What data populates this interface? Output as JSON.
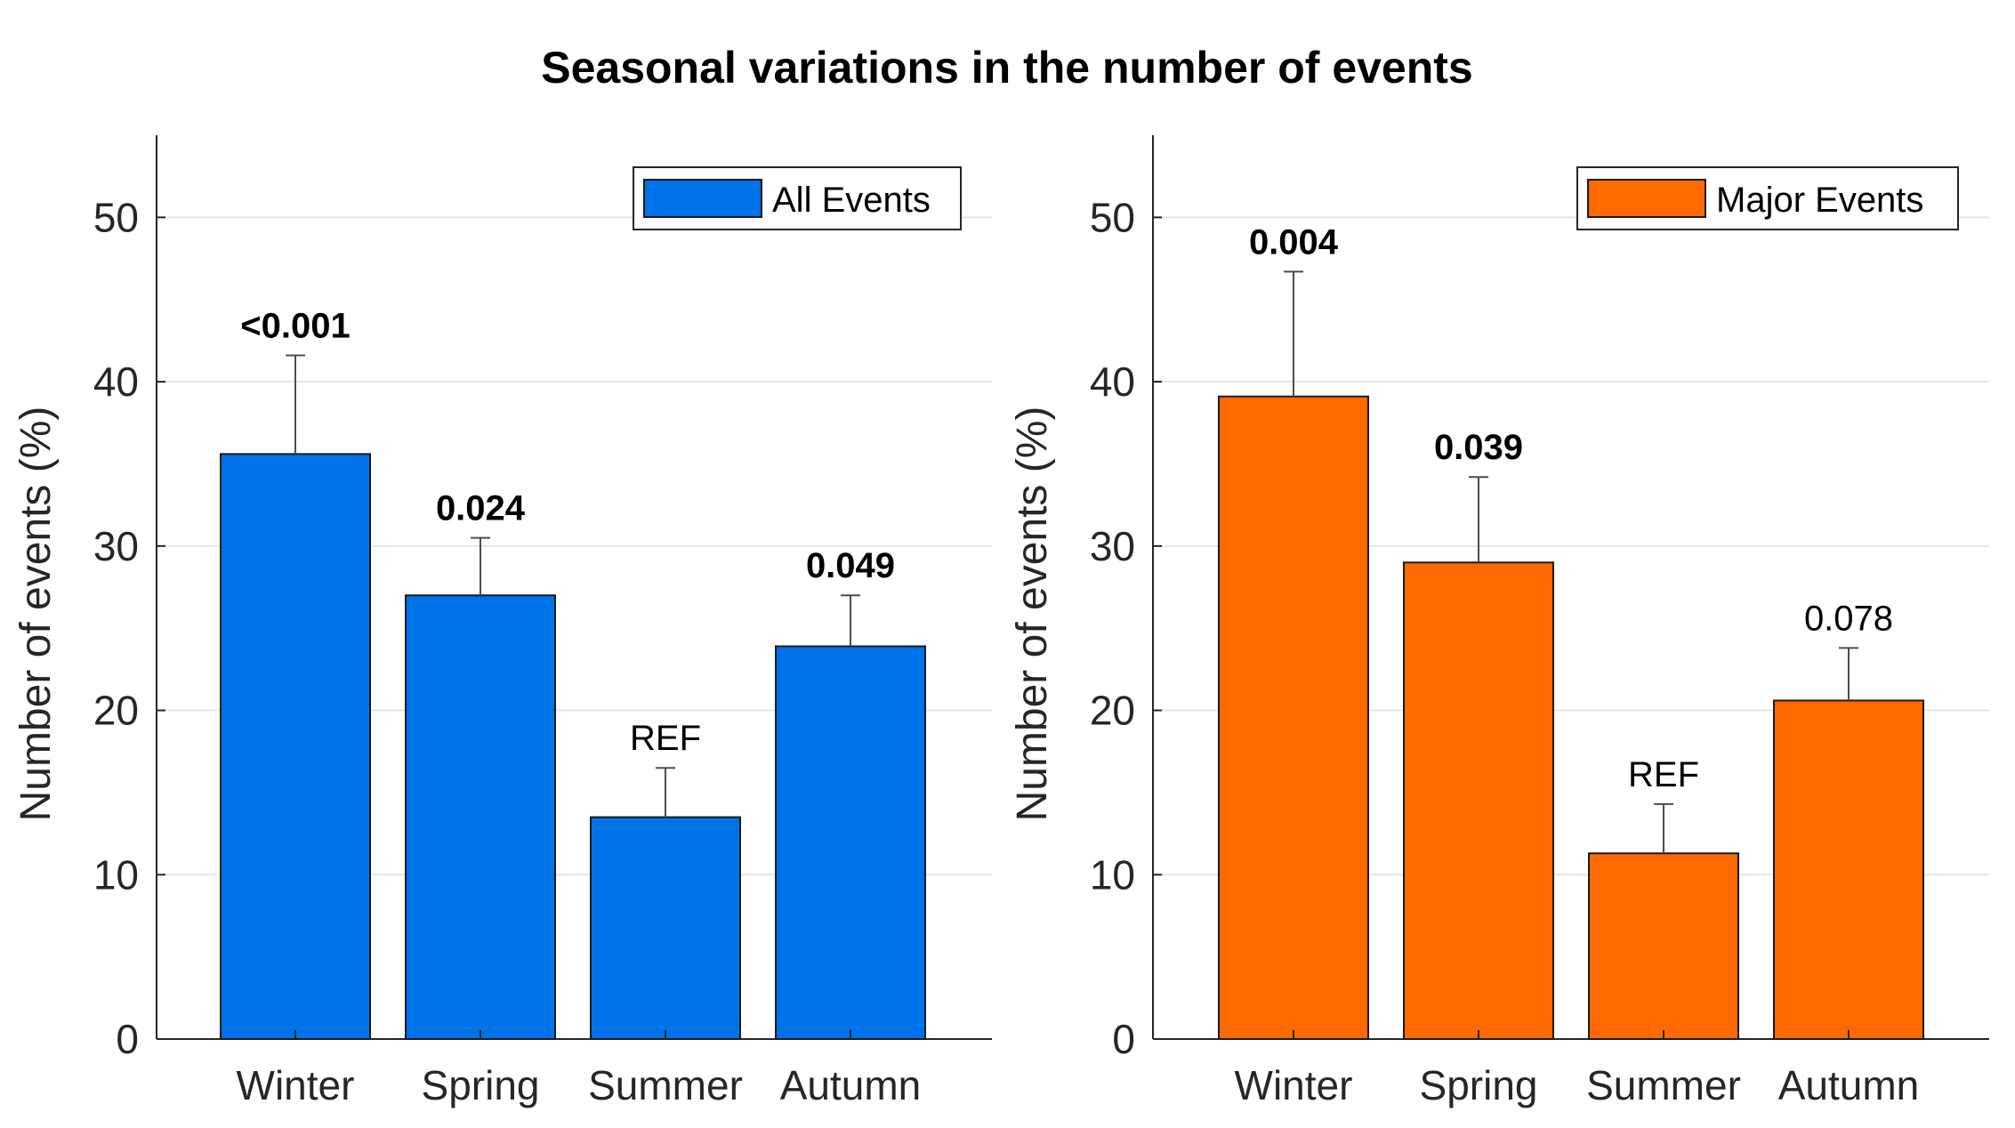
{
  "title": "Seasonal variations in the number of events",
  "chart_data": [
    {
      "type": "bar",
      "title": "",
      "xlabel": "",
      "ylabel": "Number of events (%)",
      "ylim": [
        0,
        55
      ],
      "yticks": [
        0,
        10,
        20,
        30,
        40,
        50
      ],
      "grid": "y",
      "legend_position": "top-right",
      "categories": [
        "Winter",
        "Spring",
        "Summer",
        "Autumn"
      ],
      "series": [
        {
          "name": "All Events",
          "color": "#0072E8",
          "values": [
            35.6,
            27.0,
            13.5,
            23.9
          ],
          "error_upper": [
            41.6,
            30.5,
            16.5,
            27.0
          ]
        }
      ],
      "annotations": [
        "<0.001",
        "0.024",
        "REF",
        "0.049"
      ],
      "annotation_bold": [
        true,
        true,
        false,
        true
      ]
    },
    {
      "type": "bar",
      "title": "",
      "xlabel": "",
      "ylabel": "Number of events (%)",
      "ylim": [
        0,
        55
      ],
      "yticks": [
        0,
        10,
        20,
        30,
        40,
        50
      ],
      "grid": "y",
      "legend_position": "top-right",
      "categories": [
        "Winter",
        "Spring",
        "Summer",
        "Autumn"
      ],
      "series": [
        {
          "name": "Major Events",
          "color": "#FF6A00",
          "values": [
            39.1,
            29.0,
            11.3,
            20.6
          ],
          "error_upper": [
            46.7,
            34.2,
            14.3,
            23.8
          ]
        }
      ],
      "annotations": [
        "0.004",
        "0.039",
        "REF",
        "0.078"
      ],
      "annotation_bold": [
        true,
        true,
        false,
        false
      ]
    }
  ]
}
